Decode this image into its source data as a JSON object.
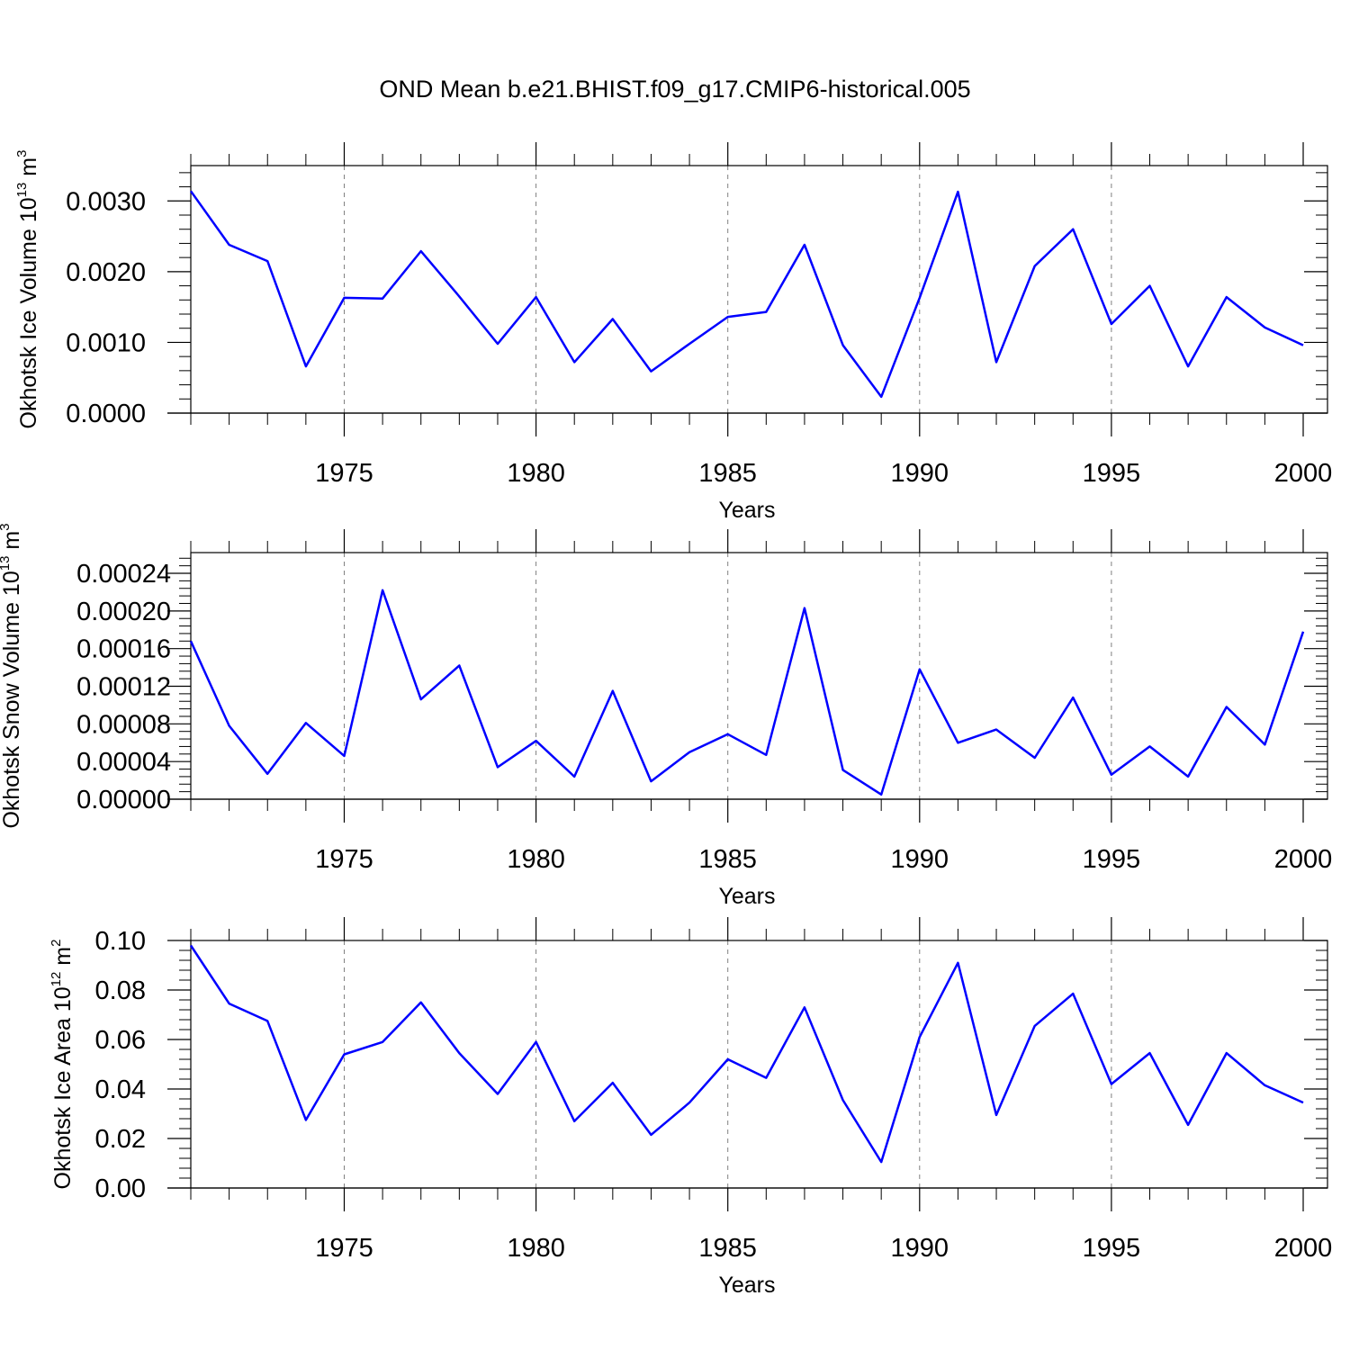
{
  "figure": {
    "title": "OND Mean b.e21.BHIST.f09_g17.CMIP6-historical.005",
    "line_color": "#0000ff",
    "grid_color": "#808080"
  },
  "chart_data": [
    {
      "type": "line",
      "ylabel_main": "Okhotsk Ice Volume 10",
      "ylabel_exp": "13",
      "ylabel_unit": " m",
      "ylabel_unit_exp": "3",
      "xlabel": "Years",
      "xlim": [
        1971,
        2000
      ],
      "ylim": [
        0,
        0.0035
      ],
      "yticks": [
        0,
        0.001,
        0.002,
        0.003
      ],
      "ytick_labels": [
        "0.0000",
        "0.0010",
        "0.0020",
        "0.0030"
      ],
      "xticks": [
        1975,
        1980,
        1985,
        1990,
        1995,
        2000
      ],
      "xtick_labels": [
        "1975",
        "1980",
        "1985",
        "1990",
        "1995",
        "2000"
      ],
      "x": [
        1971,
        1972,
        1973,
        1974,
        1975,
        1976,
        1977,
        1978,
        1979,
        1980,
        1981,
        1982,
        1983,
        1984,
        1985,
        1986,
        1987,
        1988,
        1989,
        1990,
        1991,
        1992,
        1993,
        1994,
        1995,
        1996,
        1997,
        1998,
        1999,
        2000
      ],
      "values": [
        0.00314,
        0.00238,
        0.00215,
        0.00066,
        0.00163,
        0.00162,
        0.00229,
        0.00165,
        0.00098,
        0.00164,
        0.00072,
        0.00133,
        0.00059,
        0.00098,
        0.00136,
        0.00143,
        0.00238,
        0.00096,
        0.00023,
        0.00163,
        0.00313,
        0.00072,
        0.00208,
        0.0026,
        0.00126,
        0.0018,
        0.00066,
        0.00164,
        0.00121,
        0.00096
      ]
    },
    {
      "type": "line",
      "ylabel_main": "Okhotsk Snow Volume 10",
      "ylabel_exp": "13",
      "ylabel_unit": " m",
      "ylabel_unit_exp": "3",
      "xlabel": "Years",
      "xlim": [
        1971,
        2000
      ],
      "ylim": [
        0,
        0.000262
      ],
      "yticks": [
        0,
        4e-05,
        8e-05,
        0.00012,
        0.00016,
        0.0002,
        0.00024
      ],
      "ytick_labels": [
        "0.00000",
        "0.00004",
        "0.00008",
        "0.00012",
        "0.00016",
        "0.00020",
        "0.00024"
      ],
      "xticks": [
        1975,
        1980,
        1985,
        1990,
        1995,
        2000
      ],
      "xtick_labels": [
        "1975",
        "1980",
        "1985",
        "1990",
        "1995",
        "2000"
      ],
      "x": [
        1971,
        1972,
        1973,
        1974,
        1975,
        1976,
        1977,
        1978,
        1979,
        1980,
        1981,
        1982,
        1983,
        1984,
        1985,
        1986,
        1987,
        1988,
        1989,
        1990,
        1991,
        1992,
        1993,
        1994,
        1995,
        1996,
        1997,
        1998,
        1999,
        2000
      ],
      "values": [
        0.000168,
        7.8e-05,
        2.7e-05,
        8.1e-05,
        4.6e-05,
        0.000222,
        0.000106,
        0.000142,
        3.4e-05,
        6.2e-05,
        2.4e-05,
        0.000115,
        1.9e-05,
        5e-05,
        6.9e-05,
        4.7e-05,
        0.000203,
        3.1e-05,
        5e-06,
        0.000138,
        6e-05,
        7.4e-05,
        4.4e-05,
        0.000108,
        2.6e-05,
        5.6e-05,
        2.4e-05,
        9.8e-05,
        5.8e-05,
        0.000178
      ]
    },
    {
      "type": "line",
      "ylabel_main": "Okhotsk Ice Area 10",
      "ylabel_exp": "12",
      "ylabel_unit": " m",
      "ylabel_unit_exp": "2",
      "xlabel": "Years",
      "xlim": [
        1971,
        2000
      ],
      "ylim": [
        0,
        0.1
      ],
      "yticks": [
        0,
        0.02,
        0.04,
        0.06,
        0.08,
        0.1
      ],
      "ytick_labels": [
        "0.00",
        "0.02",
        "0.04",
        "0.06",
        "0.08",
        "0.10"
      ],
      "xticks": [
        1975,
        1980,
        1985,
        1990,
        1995,
        2000
      ],
      "xtick_labels": [
        "1975",
        "1980",
        "1985",
        "1990",
        "1995",
        "2000"
      ],
      "x": [
        1971,
        1972,
        1973,
        1974,
        1975,
        1976,
        1977,
        1978,
        1979,
        1980,
        1981,
        1982,
        1983,
        1984,
        1985,
        1986,
        1987,
        1988,
        1989,
        1990,
        1991,
        1992,
        1993,
        1994,
        1995,
        1996,
        1997,
        1998,
        1999,
        2000
      ],
      "values": [
        0.098,
        0.0745,
        0.0675,
        0.0275,
        0.054,
        0.059,
        0.075,
        0.0545,
        0.038,
        0.059,
        0.027,
        0.0425,
        0.0215,
        0.0345,
        0.052,
        0.0445,
        0.073,
        0.0355,
        0.0105,
        0.061,
        0.091,
        0.0295,
        0.0655,
        0.0785,
        0.042,
        0.0545,
        0.0255,
        0.0545,
        0.0415,
        0.0345
      ]
    }
  ]
}
